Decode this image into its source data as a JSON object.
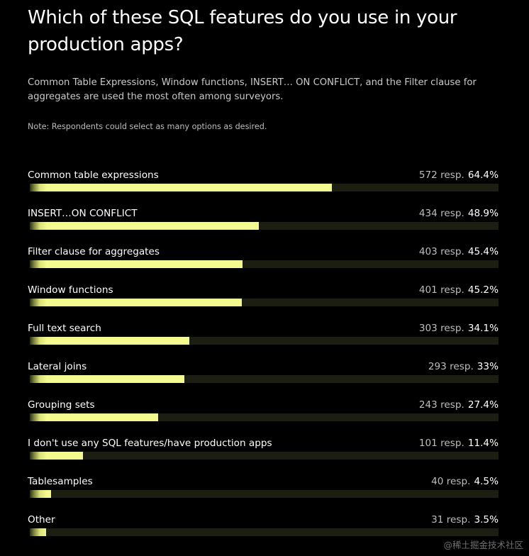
{
  "header": {
    "title": "Which of these SQL features do you use in your production apps?",
    "subtitle": "Common Table Expressions, Window functions, INSERT… ON CONFLICT, and the Filter clause for aggregates are used the most often among surveyors.",
    "note": "Note: Respondents could select as many options as desired."
  },
  "watermark": "@稀土掘金技术社区",
  "colors": {
    "background": "#000000",
    "bar_fill": "#f3fb8f",
    "bar_track": "#1c1e12",
    "text_primary": "#ffffff",
    "text_secondary": "#bdbdbd"
  },
  "chart_data": {
    "type": "bar",
    "orientation": "horizontal",
    "title": "Which of these SQL features do you use in your production apps?",
    "xlim": [
      0,
      100
    ],
    "unit": "%",
    "grid": false,
    "legend": "none",
    "categories": [
      "Common table expressions",
      "INSERT…ON CONFLICT",
      "Filter clause for aggregates",
      "Window functions",
      "Full text search",
      "Lateral joins",
      "Grouping sets",
      "I don't use any SQL features/have production apps",
      "Tablesamples",
      "Other"
    ],
    "values": [
      64.4,
      48.9,
      45.4,
      45.2,
      34.1,
      33,
      27.4,
      11.4,
      4.5,
      3.5
    ],
    "responses": [
      "572 resp.",
      "434 resp.",
      "403 resp.",
      "401 resp.",
      "303 resp.",
      "293 resp.",
      "243 resp.",
      "101 resp.",
      "40 resp.",
      "31 resp."
    ],
    "value_labels": [
      "64.4%",
      "48.9%",
      "45.4%",
      "45.2%",
      "34.1%",
      "33%",
      "27.4%",
      "11.4%",
      "4.5%",
      "3.5%"
    ]
  }
}
